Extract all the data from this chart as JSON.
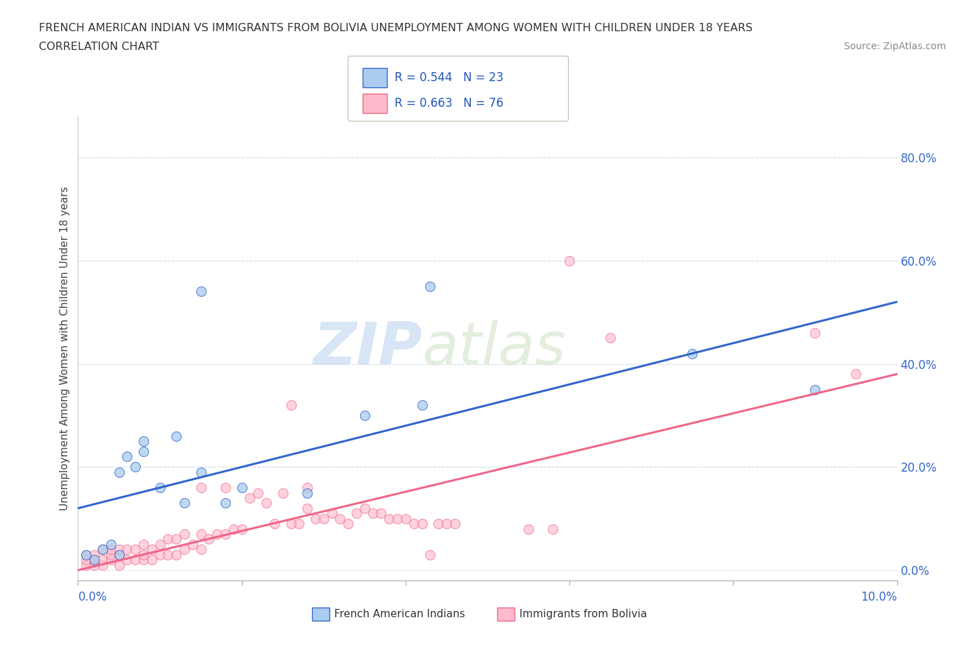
{
  "title": "FRENCH AMERICAN INDIAN VS IMMIGRANTS FROM BOLIVIA UNEMPLOYMENT AMONG WOMEN WITH CHILDREN UNDER 18 YEARS",
  "subtitle": "CORRELATION CHART",
  "source": "Source: ZipAtlas.com",
  "ylabel": "Unemployment Among Women with Children Under 18 years",
  "y_tick_labels": [
    "0.0%",
    "20.0%",
    "40.0%",
    "60.0%",
    "80.0%"
  ],
  "y_tick_values": [
    0.0,
    0.2,
    0.4,
    0.6,
    0.8
  ],
  "x_range": [
    0.0,
    0.1
  ],
  "y_range": [
    -0.02,
    0.88
  ],
  "legend_label1": "French American Indians",
  "legend_label2": "Immigrants from Bolivia",
  "R1": 0.544,
  "N1": 23,
  "R2": 0.663,
  "N2": 76,
  "color1": "#aaccee",
  "color2": "#ffbbcc",
  "line_color1": "#3366cc",
  "line_color2": "#ee6688",
  "watermark_part1": "ZIP",
  "watermark_part2": "atlas",
  "blue_scatter_x": [
    0.001,
    0.002,
    0.003,
    0.004,
    0.005,
    0.005,
    0.006,
    0.007,
    0.008,
    0.008,
    0.01,
    0.012,
    0.013,
    0.015,
    0.015,
    0.018,
    0.02,
    0.028,
    0.035,
    0.042,
    0.043,
    0.075,
    0.09
  ],
  "blue_scatter_y": [
    0.03,
    0.02,
    0.04,
    0.05,
    0.03,
    0.19,
    0.22,
    0.2,
    0.23,
    0.25,
    0.16,
    0.26,
    0.13,
    0.19,
    0.54,
    0.13,
    0.16,
    0.15,
    0.3,
    0.32,
    0.55,
    0.42,
    0.35
  ],
  "pink_scatter_x": [
    0.001,
    0.001,
    0.001,
    0.002,
    0.002,
    0.002,
    0.003,
    0.003,
    0.003,
    0.004,
    0.004,
    0.004,
    0.005,
    0.005,
    0.005,
    0.006,
    0.006,
    0.007,
    0.007,
    0.008,
    0.008,
    0.008,
    0.009,
    0.009,
    0.01,
    0.01,
    0.011,
    0.011,
    0.012,
    0.012,
    0.013,
    0.013,
    0.014,
    0.015,
    0.015,
    0.015,
    0.016,
    0.017,
    0.018,
    0.018,
    0.019,
    0.02,
    0.021,
    0.022,
    0.023,
    0.024,
    0.025,
    0.026,
    0.026,
    0.027,
    0.028,
    0.028,
    0.029,
    0.03,
    0.031,
    0.032,
    0.033,
    0.034,
    0.035,
    0.036,
    0.037,
    0.038,
    0.039,
    0.04,
    0.041,
    0.042,
    0.043,
    0.044,
    0.045,
    0.046,
    0.055,
    0.058,
    0.06,
    0.065,
    0.09,
    0.095
  ],
  "pink_scatter_y": [
    0.01,
    0.02,
    0.03,
    0.01,
    0.02,
    0.03,
    0.01,
    0.02,
    0.04,
    0.02,
    0.03,
    0.04,
    0.01,
    0.03,
    0.04,
    0.02,
    0.04,
    0.02,
    0.04,
    0.02,
    0.03,
    0.05,
    0.02,
    0.04,
    0.03,
    0.05,
    0.03,
    0.06,
    0.03,
    0.06,
    0.04,
    0.07,
    0.05,
    0.04,
    0.07,
    0.16,
    0.06,
    0.07,
    0.07,
    0.16,
    0.08,
    0.08,
    0.14,
    0.15,
    0.13,
    0.09,
    0.15,
    0.09,
    0.32,
    0.09,
    0.12,
    0.16,
    0.1,
    0.1,
    0.11,
    0.1,
    0.09,
    0.11,
    0.12,
    0.11,
    0.11,
    0.1,
    0.1,
    0.1,
    0.09,
    0.09,
    0.03,
    0.09,
    0.09,
    0.09,
    0.08,
    0.08,
    0.6,
    0.45,
    0.46,
    0.38
  ],
  "blue_line_x": [
    0.0,
    0.1
  ],
  "blue_line_y": [
    0.12,
    0.52
  ],
  "pink_line_x": [
    0.0,
    0.1
  ],
  "pink_line_y": [
    0.0,
    0.38
  ]
}
